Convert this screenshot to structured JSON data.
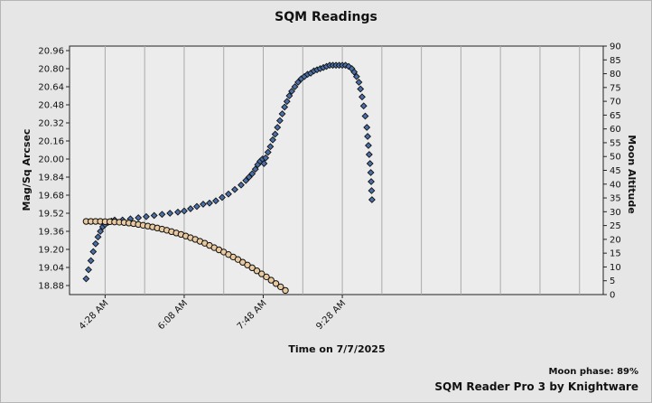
{
  "chart_data": {
    "type": "scatter",
    "title": "SQM Readings",
    "xlabel": "Time on 7/7/2025",
    "ylabel": "Mag/Sq Arcsec",
    "y2label": "Moon Altitude",
    "x_unit": "minutes after midnight",
    "xlim": [
      223,
      898
    ],
    "x_ticks": [
      268,
      368,
      468,
      568
    ],
    "x_tick_labels": [
      "4:28 AM",
      "6:08 AM",
      "7:48 AM",
      "9:28 AM"
    ],
    "ylim": [
      18.8,
      21.0
    ],
    "y_ticks": [
      18.88,
      19.04,
      19.2,
      19.36,
      19.52,
      19.68,
      19.84,
      20.0,
      20.16,
      20.32,
      20.48,
      20.64,
      20.8,
      20.96
    ],
    "y_tick_labels": [
      "18.88",
      "19.04",
      "19.20",
      "19.36",
      "19.52",
      "19.68",
      "19.84",
      "20.00",
      "20.16",
      "20.32",
      "20.48",
      "20.64",
      "20.80",
      "20.96"
    ],
    "y2lim": [
      0,
      90
    ],
    "y2_ticks": [
      0,
      5,
      10,
      15,
      20,
      25,
      30,
      35,
      40,
      45,
      50,
      55,
      60,
      65,
      70,
      75,
      80,
      85,
      90
    ],
    "grid": true,
    "legend": "none",
    "series": [
      {
        "axis": "left",
        "marker": "diamond",
        "color": "#4a6fa8",
        "points": [
          [
            244,
            18.94
          ],
          [
            247,
            19.02
          ],
          [
            250,
            19.1
          ],
          [
            253,
            19.18
          ],
          [
            256,
            19.25
          ],
          [
            259,
            19.31
          ],
          [
            262,
            19.36
          ],
          [
            265,
            19.4
          ],
          [
            268,
            19.42
          ],
          [
            272,
            19.44
          ],
          [
            276,
            19.45
          ],
          [
            280,
            19.46
          ],
          [
            290,
            19.46
          ],
          [
            300,
            19.47
          ],
          [
            310,
            19.48
          ],
          [
            320,
            19.49
          ],
          [
            330,
            19.5
          ],
          [
            340,
            19.51
          ],
          [
            350,
            19.52
          ],
          [
            360,
            19.53
          ],
          [
            368,
            19.54
          ],
          [
            376,
            19.56
          ],
          [
            384,
            19.58
          ],
          [
            392,
            19.6
          ],
          [
            400,
            19.61
          ],
          [
            408,
            19.63
          ],
          [
            416,
            19.66
          ],
          [
            424,
            19.69
          ],
          [
            432,
            19.73
          ],
          [
            440,
            19.77
          ],
          [
            446,
            19.81
          ],
          [
            450,
            19.84
          ],
          [
            454,
            19.87
          ],
          [
            458,
            19.91
          ],
          [
            461,
            19.95
          ],
          [
            464,
            19.98
          ],
          [
            467,
            20.0
          ],
          [
            469,
            19.96
          ],
          [
            471,
            20.01
          ],
          [
            474,
            20.06
          ],
          [
            477,
            20.11
          ],
          [
            480,
            20.17
          ],
          [
            483,
            20.22
          ],
          [
            486,
            20.28
          ],
          [
            489,
            20.34
          ],
          [
            492,
            20.4
          ],
          [
            495,
            20.46
          ],
          [
            498,
            20.51
          ],
          [
            501,
            20.56
          ],
          [
            504,
            20.6
          ],
          [
            508,
            20.64
          ],
          [
            512,
            20.68
          ],
          [
            516,
            20.71
          ],
          [
            520,
            20.73
          ],
          [
            524,
            20.75
          ],
          [
            528,
            20.76
          ],
          [
            532,
            20.78
          ],
          [
            536,
            20.79
          ],
          [
            540,
            20.8
          ],
          [
            544,
            20.81
          ],
          [
            548,
            20.82
          ],
          [
            552,
            20.83
          ],
          [
            556,
            20.83
          ],
          [
            560,
            20.83
          ],
          [
            564,
            20.83
          ],
          [
            568,
            20.83
          ],
          [
            572,
            20.83
          ],
          [
            576,
            20.82
          ],
          [
            580,
            20.8
          ],
          [
            583,
            20.77
          ],
          [
            586,
            20.73
          ],
          [
            589,
            20.68
          ],
          [
            591,
            20.62
          ],
          [
            593,
            20.55
          ],
          [
            595,
            20.47
          ],
          [
            597,
            20.38
          ],
          [
            599,
            20.28
          ],
          [
            600,
            20.2
          ],
          [
            601,
            20.12
          ],
          [
            602,
            20.04
          ],
          [
            603,
            19.96
          ],
          [
            604,
            19.88
          ],
          [
            604.5,
            19.8
          ],
          [
            605,
            19.72
          ],
          [
            605.5,
            19.64
          ]
        ]
      },
      {
        "axis": "right",
        "marker": "circle",
        "color": "#e8c9a0",
        "points": [
          [
            244,
            26.5
          ],
          [
            250,
            26.5
          ],
          [
            256,
            26.5
          ],
          [
            262,
            26.5
          ],
          [
            268,
            26.4
          ],
          [
            274,
            26.4
          ],
          [
            280,
            26.3
          ],
          [
            286,
            26.2
          ],
          [
            292,
            26.1
          ],
          [
            298,
            25.9
          ],
          [
            304,
            25.7
          ],
          [
            310,
            25.4
          ],
          [
            316,
            25.1
          ],
          [
            322,
            24.8
          ],
          [
            328,
            24.5
          ],
          [
            334,
            24.1
          ],
          [
            340,
            23.7
          ],
          [
            346,
            23.3
          ],
          [
            352,
            22.8
          ],
          [
            358,
            22.3
          ],
          [
            364,
            21.8
          ],
          [
            370,
            21.2
          ],
          [
            376,
            20.6
          ],
          [
            382,
            20.0
          ],
          [
            388,
            19.3
          ],
          [
            394,
            18.6
          ],
          [
            400,
            17.8
          ],
          [
            406,
            17.0
          ],
          [
            412,
            16.2
          ],
          [
            418,
            15.4
          ],
          [
            424,
            14.5
          ],
          [
            430,
            13.6
          ],
          [
            436,
            12.7
          ],
          [
            442,
            11.7
          ],
          [
            448,
            10.7
          ],
          [
            454,
            9.7
          ],
          [
            460,
            8.6
          ],
          [
            466,
            7.5
          ],
          [
            472,
            6.4
          ],
          [
            478,
            5.2
          ],
          [
            484,
            4.0
          ],
          [
            490,
            2.8
          ],
          [
            496,
            1.5
          ]
        ]
      }
    ]
  },
  "footer": {
    "moon_phase": "Moon phase: 89%",
    "app": "SQM Reader Pro 3 by Knightware"
  }
}
